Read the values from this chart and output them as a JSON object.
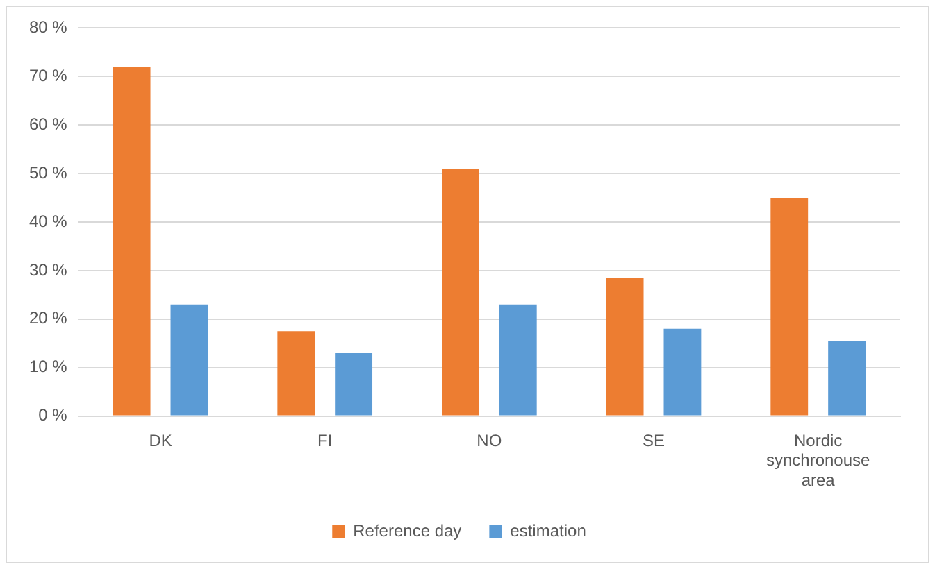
{
  "chart_data": {
    "type": "bar",
    "categories": [
      "DK",
      "FI",
      "NO",
      "SE",
      "Nordic synchronouse area"
    ],
    "series": [
      {
        "name": "Reference day",
        "color": "#ed7d31",
        "values": [
          72,
          17.5,
          51,
          28.5,
          45
        ]
      },
      {
        "name": "estimation",
        "color": "#5b9bd5",
        "values": [
          23,
          13,
          23,
          18,
          15.5
        ]
      }
    ],
    "ylim": [
      0,
      80
    ],
    "yticks": [
      {
        "value": 0,
        "label": "0 %"
      },
      {
        "value": 10,
        "label": "10 %"
      },
      {
        "value": 20,
        "label": "20 %"
      },
      {
        "value": 30,
        "label": "30 %"
      },
      {
        "value": 40,
        "label": "40 %"
      },
      {
        "value": 50,
        "label": "50 %"
      },
      {
        "value": 60,
        "label": "60 %"
      },
      {
        "value": 70,
        "label": "70 %"
      },
      {
        "value": 80,
        "label": "80 %"
      }
    ],
    "grid": "y",
    "legend": "bottom"
  }
}
